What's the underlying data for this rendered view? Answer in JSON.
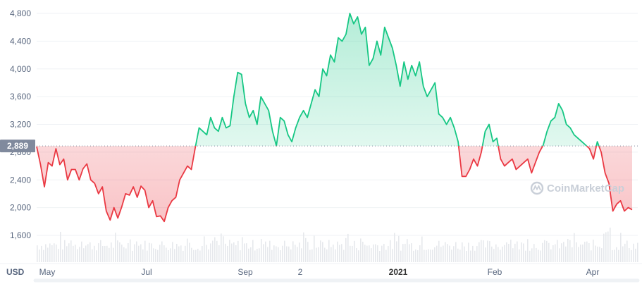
{
  "chart_data": {
    "type": "area",
    "currency": "USD",
    "baseline_value": 2889,
    "baseline_label": "2,889",
    "ylim": [
      1400,
      4900
    ],
    "y_ticks": [
      1600,
      2000,
      2400,
      2800,
      3200,
      3600,
      4000,
      4400,
      4800
    ],
    "y_tick_labels": [
      "1,600",
      "2,000",
      "2,400",
      "2,800",
      "3,200",
      "3,600",
      "4,000",
      "4,400",
      "4,800"
    ],
    "x_tick_labels": [
      {
        "label": "May",
        "bold": false
      },
      {
        "label": "Jul",
        "bold": false
      },
      {
        "label": "Sep",
        "bold": false
      },
      {
        "label": "2",
        "bold": false
      },
      {
        "label": "2021",
        "bold": true
      },
      {
        "label": "Feb",
        "bold": false
      },
      {
        "label": "Apr",
        "bold": false
      }
    ],
    "watermark": "CoinMarketCap",
    "up_color": "#16c784",
    "down_color": "#ea3943",
    "values": [
      2880,
      2620,
      2300,
      2650,
      2600,
      2850,
      2620,
      2700,
      2400,
      2550,
      2550,
      2400,
      2560,
      2630,
      2400,
      2350,
      2200,
      2300,
      1950,
      1820,
      2000,
      1850,
      2010,
      2200,
      2180,
      2300,
      2150,
      2310,
      2250,
      2000,
      2100,
      1870,
      1880,
      1800,
      2000,
      2100,
      2150,
      2400,
      2500,
      2600,
      2550,
      2860,
      3150,
      3100,
      3050,
      3300,
      3150,
      3100,
      3300,
      3150,
      3180,
      3600,
      3950,
      3920,
      3500,
      3300,
      3400,
      3200,
      3600,
      3500,
      3400,
      3100,
      2890,
      3300,
      3250,
      3050,
      2950,
      3150,
      3300,
      3400,
      3300,
      3500,
      3700,
      3600,
      4000,
      3900,
      4200,
      4100,
      4450,
      4400,
      4500,
      4800,
      4650,
      4750,
      4500,
      4600,
      4050,
      4150,
      4400,
      4200,
      4600,
      4450,
      4300,
      4050,
      3750,
      4100,
      3850,
      4050,
      3900,
      4100,
      3750,
      3600,
      3700,
      3800,
      3350,
      3300,
      3200,
      3300,
      3150,
      2950,
      2450,
      2450,
      2550,
      2700,
      2600,
      2800,
      3100,
      3200,
      2950,
      3000,
      2700,
      2600,
      2650,
      2700,
      2550,
      2600,
      2650,
      2700,
      2500,
      2650,
      2800,
      2900,
      3100,
      3250,
      3300,
      3500,
      3400,
      3200,
      3150,
      3050,
      3000,
      2950,
      2900,
      2850,
      2700,
      2950,
      2800,
      2500,
      2350,
      1950,
      2050,
      2100,
      1950,
      2000,
      1970
    ]
  }
}
